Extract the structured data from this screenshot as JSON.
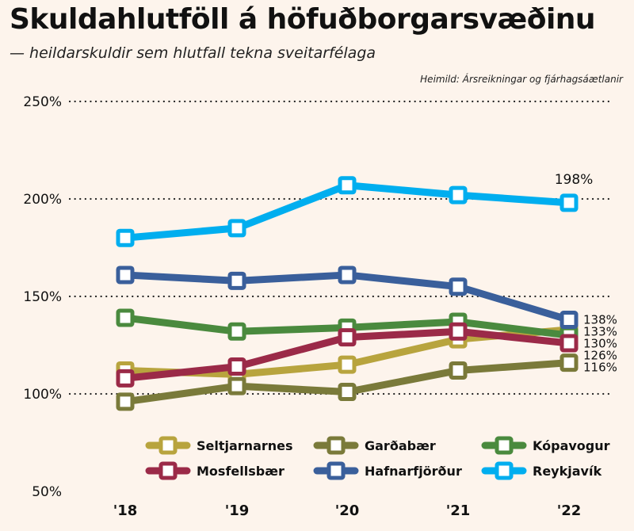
{
  "title": "Skuldahlutföll á höfuðborgarsvæðinu",
  "subtitle": "— heildarskuldir sem hlutfall tekna sveitarfélaga",
  "source": "Heimild: Ársreikningar og fjárhagsáætlanir",
  "chart_data": {
    "type": "line",
    "title": "Skuldahlutföll á höfuðborgarsvæðinu",
    "subtitle": "— heildarskuldir sem hlutfall tekna sveitarfélaga",
    "x": [
      "'18",
      "'19",
      "'20",
      "'21",
      "'22"
    ],
    "ylim": [
      50,
      250
    ],
    "yticks": [
      50,
      100,
      150,
      200,
      250
    ],
    "ytick_labels": [
      "50%",
      "100%",
      "150%",
      "200%",
      "250%"
    ],
    "grid": "horizontal dotted",
    "legend_position": "bottom",
    "series": [
      {
        "name": "Seltjarnarnes",
        "color": "#b8a43e",
        "values": [
          112,
          110,
          115,
          128,
          133
        ],
        "end_label": "133%"
      },
      {
        "name": "Garðabær",
        "color": "#7a7a3a",
        "values": [
          96,
          104,
          101,
          112,
          116
        ],
        "end_label": "116%"
      },
      {
        "name": "Kópavogur",
        "color": "#4a8a3e",
        "values": [
          139,
          132,
          134,
          137,
          130
        ],
        "end_label": "130%"
      },
      {
        "name": "Mosfellsbær",
        "color": "#9b2a48",
        "values": [
          108,
          114,
          129,
          132,
          126
        ],
        "end_label": "126%"
      },
      {
        "name": "Hafnarfjörður",
        "color": "#3a5f9b",
        "values": [
          161,
          158,
          161,
          155,
          138
        ],
        "end_label": "138%"
      },
      {
        "name": "Reykjavík",
        "color": "#00aeef",
        "values": [
          180,
          185,
          207,
          202,
          198
        ],
        "end_label": "198%"
      }
    ]
  }
}
